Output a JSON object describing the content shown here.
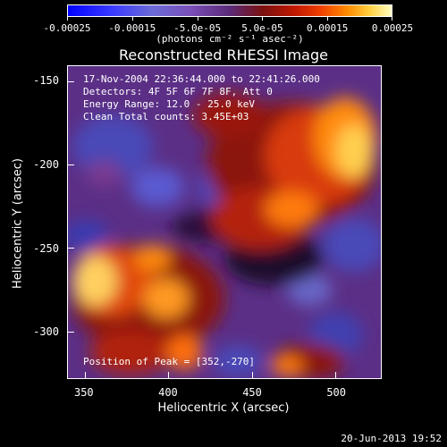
{
  "colorbar": {
    "tick_labels": [
      "-0.00025",
      "-0.00015",
      "-5.0e-05",
      "5.0e-05",
      "0.00015",
      "0.00025"
    ],
    "units": "(photons cm⁻² s⁻¹ asec⁻²)",
    "colors": [
      "#0000ff",
      "#6b6bd8",
      "#5a2a78",
      "#c01800",
      "#ff8a00",
      "#ffffc8"
    ]
  },
  "plot": {
    "title": "Reconstructed RHESSI Image",
    "xlabel": "Heliocentric X (arcsec)",
    "ylabel": "Heliocentric Y (arcsec)",
    "x_ticks": [
      "350",
      "400",
      "450",
      "500"
    ],
    "y_ticks": [
      "-150",
      "-200",
      "-250",
      "-300"
    ],
    "xlim": [
      340,
      527
    ],
    "ylim": [
      -328,
      -141
    ]
  },
  "info": {
    "time_range": "17-Nov-2004 22:36:44.000 to 22:41:26.000",
    "detectors": "Detectors: 4F 5F 6F 7F 8F, Att 0",
    "energy": "Energy Range: 12.0 - 25.0 keV",
    "clean": "Clean    Total counts: 3.45E+03",
    "peak": "Position of Peak = [352,-270]"
  },
  "footer": {
    "date": "20-Jun-2013 19:52"
  }
}
